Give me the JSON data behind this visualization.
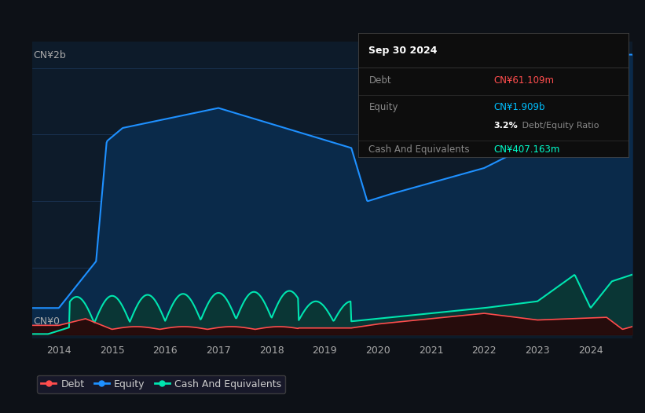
{
  "bg_color": "#0d1117",
  "plot_bg_color": "#0d1b2a",
  "grid_color": "#1e3a5f",
  "title_text": "Sep 30 2024",
  "tooltip": {
    "debt_label": "Debt",
    "debt_value": "CN¥61.109m",
    "debt_color": "#ff4d4d",
    "equity_label": "Equity",
    "equity_value": "CN¥1.909b",
    "equity_color": "#00bfff",
    "ratio_value": "3.2%",
    "ratio_label": " Debt/Equity Ratio",
    "cash_label": "Cash And Equivalents",
    "cash_value": "CN¥407.163m",
    "cash_color": "#00ffcc"
  },
  "ylabel_top": "CN¥2b",
  "ylabel_bottom": "CN¥0",
  "debt_color": "#ff4d4d",
  "equity_color": "#1e90ff",
  "cash_color": "#00e5b0",
  "legend": [
    {
      "label": "Debt",
      "color": "#ff4d4d"
    },
    {
      "label": "Equity",
      "color": "#1e90ff"
    },
    {
      "label": "Cash And Equivalents",
      "color": "#00e5b0"
    }
  ],
  "x_ticks": [
    2014,
    2015,
    2016,
    2017,
    2018,
    2019,
    2020,
    2021,
    2022,
    2023,
    2024
  ],
  "y_max": 2200000000
}
